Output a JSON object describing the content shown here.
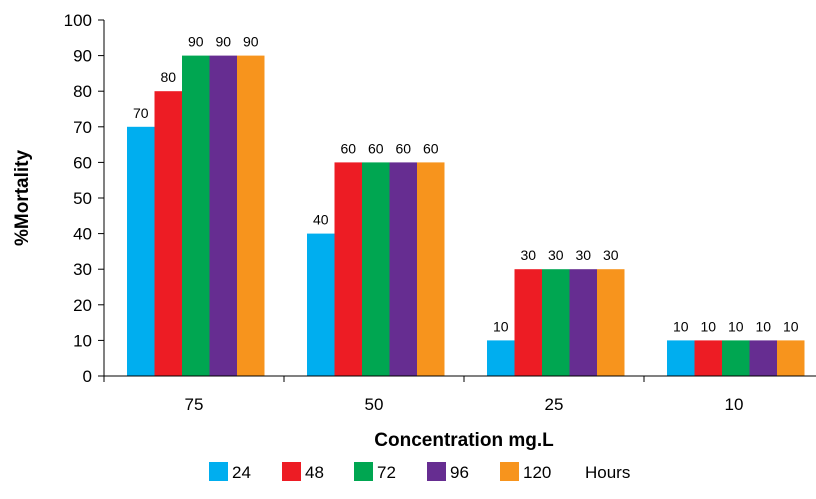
{
  "chart_data": {
    "type": "bar",
    "title": "",
    "xlabel": "Concentration mg.L",
    "ylabel": "%Mortality",
    "categories": [
      "75",
      "50",
      "25",
      "10"
    ],
    "series": [
      {
        "name": "24",
        "color": "#00AEEF",
        "values": [
          70,
          40,
          10,
          10
        ]
      },
      {
        "name": "48",
        "color": "#ED1C24",
        "values": [
          80,
          60,
          30,
          10
        ]
      },
      {
        "name": "72",
        "color": "#00A651",
        "values": [
          90,
          60,
          30,
          10
        ]
      },
      {
        "name": "96",
        "color": "#662D91",
        "values": [
          90,
          60,
          30,
          10
        ]
      },
      {
        "name": "120",
        "color": "#F7941D",
        "values": [
          90,
          60,
          30,
          10
        ]
      }
    ],
    "legend_suffix": "Hours",
    "legend_position": "bottom",
    "ylim": [
      0,
      100
    ],
    "yticks": [
      0,
      10,
      20,
      30,
      40,
      50,
      60,
      70,
      80,
      90,
      100
    ],
    "grid": false,
    "data_labels": true
  }
}
